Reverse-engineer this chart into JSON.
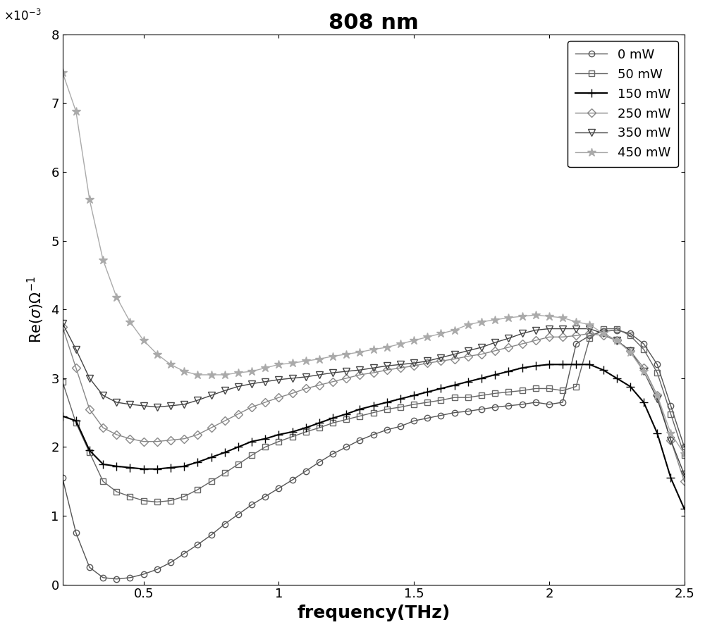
{
  "title": "808 nm",
  "xlabel": "frequency(THz)",
  "xlim": [
    0.2,
    2.5
  ],
  "ylim": [
    0,
    0.008
  ],
  "series": [
    {
      "label": "0 mW",
      "color": "#555555",
      "marker": "o",
      "linewidth": 1.0,
      "markersize": 6,
      "x": [
        0.2,
        0.25,
        0.3,
        0.35,
        0.4,
        0.45,
        0.5,
        0.55,
        0.6,
        0.65,
        0.7,
        0.75,
        0.8,
        0.85,
        0.9,
        0.95,
        1.0,
        1.05,
        1.1,
        1.15,
        1.2,
        1.25,
        1.3,
        1.35,
        1.4,
        1.45,
        1.5,
        1.55,
        1.6,
        1.65,
        1.7,
        1.75,
        1.8,
        1.85,
        1.9,
        1.95,
        2.0,
        2.05,
        2.1,
        2.15,
        2.2,
        2.25,
        2.3,
        2.35,
        2.4,
        2.45,
        2.5
      ],
      "y": [
        0.00155,
        0.00075,
        0.00025,
        0.0001,
        8e-05,
        0.0001,
        0.00015,
        0.00022,
        0.00032,
        0.00045,
        0.00058,
        0.00072,
        0.00088,
        0.00102,
        0.00116,
        0.00128,
        0.0014,
        0.00152,
        0.00165,
        0.00178,
        0.0019,
        0.002,
        0.0021,
        0.00218,
        0.00225,
        0.0023,
        0.00238,
        0.00242,
        0.00246,
        0.0025,
        0.00252,
        0.00255,
        0.00258,
        0.0026,
        0.00262,
        0.00265,
        0.00262,
        0.00265,
        0.0035,
        0.00362,
        0.00368,
        0.0037,
        0.00365,
        0.0035,
        0.0032,
        0.0026,
        0.002
      ]
    },
    {
      "label": "50 mW",
      "color": "#666666",
      "marker": "s",
      "linewidth": 1.0,
      "markersize": 6,
      "x": [
        0.2,
        0.25,
        0.3,
        0.35,
        0.4,
        0.45,
        0.5,
        0.55,
        0.6,
        0.65,
        0.7,
        0.75,
        0.8,
        0.85,
        0.9,
        0.95,
        1.0,
        1.05,
        1.1,
        1.15,
        1.2,
        1.25,
        1.3,
        1.35,
        1.4,
        1.45,
        1.5,
        1.55,
        1.6,
        1.65,
        1.7,
        1.75,
        1.8,
        1.85,
        1.9,
        1.95,
        2.0,
        2.05,
        2.1,
        2.15,
        2.2,
        2.25,
        2.3,
        2.35,
        2.4,
        2.45,
        2.5
      ],
      "y": [
        0.00295,
        0.00235,
        0.00192,
        0.0015,
        0.00135,
        0.00128,
        0.00122,
        0.0012,
        0.00122,
        0.00128,
        0.00138,
        0.0015,
        0.00162,
        0.00175,
        0.00188,
        0.002,
        0.00208,
        0.00215,
        0.00222,
        0.00228,
        0.00235,
        0.0024,
        0.00245,
        0.0025,
        0.00255,
        0.00258,
        0.00262,
        0.00265,
        0.00268,
        0.00272,
        0.00272,
        0.00275,
        0.00278,
        0.0028,
        0.00282,
        0.00285,
        0.00285,
        0.00282,
        0.00288,
        0.00358,
        0.00372,
        0.00372,
        0.00362,
        0.00342,
        0.00308,
        0.00248,
        0.00188
      ]
    },
    {
      "label": "150 mW",
      "color": "#000000",
      "marker": "+",
      "linewidth": 1.5,
      "markersize": 8,
      "x": [
        0.2,
        0.25,
        0.3,
        0.35,
        0.4,
        0.45,
        0.5,
        0.55,
        0.6,
        0.65,
        0.7,
        0.75,
        0.8,
        0.85,
        0.9,
        0.95,
        1.0,
        1.05,
        1.1,
        1.15,
        1.2,
        1.25,
        1.3,
        1.35,
        1.4,
        1.45,
        1.5,
        1.55,
        1.6,
        1.65,
        1.7,
        1.75,
        1.8,
        1.85,
        1.9,
        1.95,
        2.0,
        2.05,
        2.1,
        2.15,
        2.2,
        2.25,
        2.3,
        2.35,
        2.4,
        2.45,
        2.5
      ],
      "y": [
        0.00245,
        0.00238,
        0.00195,
        0.00175,
        0.00172,
        0.0017,
        0.00168,
        0.00168,
        0.0017,
        0.00172,
        0.00178,
        0.00185,
        0.00192,
        0.002,
        0.00208,
        0.00212,
        0.00218,
        0.00222,
        0.00228,
        0.00235,
        0.00242,
        0.00248,
        0.00255,
        0.0026,
        0.00265,
        0.0027,
        0.00275,
        0.0028,
        0.00285,
        0.0029,
        0.00295,
        0.003,
        0.00305,
        0.0031,
        0.00315,
        0.00318,
        0.0032,
        0.0032,
        0.0032,
        0.0032,
        0.00312,
        0.003,
        0.00288,
        0.00265,
        0.0022,
        0.00155,
        0.0011
      ]
    },
    {
      "label": "250 mW",
      "color": "#888888",
      "marker": "D",
      "linewidth": 1.0,
      "markersize": 6,
      "x": [
        0.2,
        0.25,
        0.3,
        0.35,
        0.4,
        0.45,
        0.5,
        0.55,
        0.6,
        0.65,
        0.7,
        0.75,
        0.8,
        0.85,
        0.9,
        0.95,
        1.0,
        1.05,
        1.1,
        1.15,
        1.2,
        1.25,
        1.3,
        1.35,
        1.4,
        1.45,
        1.5,
        1.55,
        1.6,
        1.65,
        1.7,
        1.75,
        1.8,
        1.85,
        1.9,
        1.95,
        2.0,
        2.05,
        2.1,
        2.15,
        2.2,
        2.25,
        2.3,
        2.35,
        2.4,
        2.45,
        2.5
      ],
      "y": [
        0.00375,
        0.00315,
        0.00255,
        0.00228,
        0.00218,
        0.00212,
        0.00208,
        0.00208,
        0.0021,
        0.00212,
        0.00218,
        0.00228,
        0.00238,
        0.00248,
        0.00258,
        0.00265,
        0.00272,
        0.00278,
        0.00285,
        0.0029,
        0.00295,
        0.003,
        0.00305,
        0.00308,
        0.00312,
        0.00315,
        0.00318,
        0.00322,
        0.00325,
        0.00328,
        0.00332,
        0.00335,
        0.0034,
        0.00345,
        0.0035,
        0.00355,
        0.0036,
        0.0036,
        0.00362,
        0.00365,
        0.00362,
        0.00355,
        0.0034,
        0.00315,
        0.00275,
        0.0021,
        0.0015
      ]
    },
    {
      "label": "350 mW",
      "color": "#444444",
      "marker": "v",
      "linewidth": 1.0,
      "markersize": 7,
      "x": [
        0.2,
        0.25,
        0.3,
        0.35,
        0.4,
        0.45,
        0.5,
        0.55,
        0.6,
        0.65,
        0.7,
        0.75,
        0.8,
        0.85,
        0.9,
        0.95,
        1.0,
        1.05,
        1.1,
        1.15,
        1.2,
        1.25,
        1.3,
        1.35,
        1.4,
        1.45,
        1.5,
        1.55,
        1.6,
        1.65,
        1.7,
        1.75,
        1.8,
        1.85,
        1.9,
        1.95,
        2.0,
        2.05,
        2.1,
        2.15,
        2.2,
        2.25,
        2.3,
        2.35,
        2.4,
        2.45,
        2.5
      ],
      "y": [
        0.0038,
        0.00342,
        0.003,
        0.00275,
        0.00265,
        0.00262,
        0.0026,
        0.00258,
        0.0026,
        0.00262,
        0.00268,
        0.00275,
        0.00282,
        0.00288,
        0.00292,
        0.00295,
        0.00298,
        0.003,
        0.00302,
        0.00305,
        0.00308,
        0.0031,
        0.00312,
        0.00315,
        0.00318,
        0.0032,
        0.00322,
        0.00325,
        0.0033,
        0.00335,
        0.0034,
        0.00345,
        0.00352,
        0.00358,
        0.00365,
        0.0037,
        0.00372,
        0.00372,
        0.00372,
        0.00372,
        0.00365,
        0.00355,
        0.0034,
        0.0031,
        0.0027,
        0.0021,
        0.0016
      ]
    },
    {
      "label": "450 mW",
      "color": "#aaaaaa",
      "marker": "*",
      "linewidth": 1.0,
      "markersize": 9,
      "x": [
        0.2,
        0.25,
        0.3,
        0.35,
        0.4,
        0.45,
        0.5,
        0.55,
        0.6,
        0.65,
        0.7,
        0.75,
        0.8,
        0.85,
        0.9,
        0.95,
        1.0,
        1.05,
        1.1,
        1.15,
        1.2,
        1.25,
        1.3,
        1.35,
        1.4,
        1.45,
        1.5,
        1.55,
        1.6,
        1.65,
        1.7,
        1.75,
        1.8,
        1.85,
        1.9,
        1.95,
        2.0,
        2.05,
        2.1,
        2.15,
        2.2,
        2.25,
        2.3,
        2.35,
        2.4,
        2.45,
        2.5
      ],
      "y": [
        0.00745,
        0.00688,
        0.0056,
        0.00472,
        0.00418,
        0.00382,
        0.00355,
        0.00335,
        0.0032,
        0.0031,
        0.00305,
        0.00305,
        0.00305,
        0.00308,
        0.0031,
        0.00315,
        0.0032,
        0.00322,
        0.00325,
        0.00328,
        0.00332,
        0.00335,
        0.00338,
        0.00342,
        0.00345,
        0.0035,
        0.00355,
        0.0036,
        0.00365,
        0.0037,
        0.00378,
        0.00382,
        0.00385,
        0.00388,
        0.0039,
        0.00392,
        0.0039,
        0.00388,
        0.00382,
        0.00378,
        0.00365,
        0.00355,
        0.00338,
        0.0031,
        0.00275,
        0.0022,
        0.0019
      ]
    }
  ]
}
